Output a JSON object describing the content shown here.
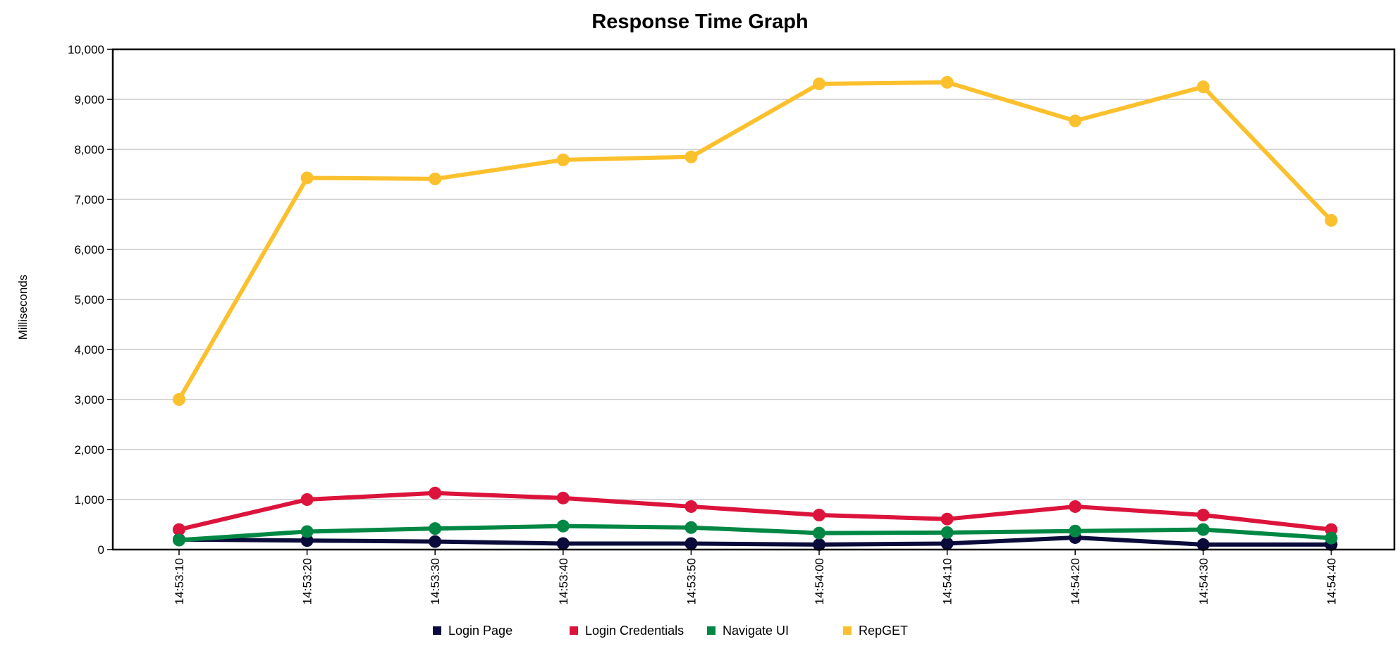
{
  "chart_data": {
    "type": "line",
    "title": "Response Time Graph",
    "xlabel": "",
    "ylabel": "Milliseconds",
    "ylim": [
      0,
      10000
    ],
    "y_ticks": [
      "0",
      "1,000",
      "2,000",
      "3,000",
      "4,000",
      "5,000",
      "6,000",
      "7,000",
      "8,000",
      "9,000",
      "10,000"
    ],
    "y_tick_values": [
      0,
      1000,
      2000,
      3000,
      4000,
      5000,
      6000,
      7000,
      8000,
      9000,
      10000
    ],
    "grid": true,
    "legend_position": "bottom",
    "categories": [
      "14:53:10",
      "14:53:20",
      "14:53:30",
      "14:53:40",
      "14:53:50",
      "14:54:00",
      "14:54:10",
      "14:54:20",
      "14:54:30",
      "14:54:40"
    ],
    "series": [
      {
        "name": "Login Page",
        "color": "#0b0b3b",
        "values": [
          200,
          180,
          160,
          120,
          120,
          100,
          120,
          240,
          100,
          100
        ]
      },
      {
        "name": "Login Credentials",
        "color": "#dc143c",
        "values": [
          400,
          1000,
          1130,
          1030,
          860,
          690,
          610,
          860,
          690,
          400
        ]
      },
      {
        "name": "Navigate UI",
        "color": "#008744",
        "values": [
          190,
          360,
          420,
          470,
          440,
          330,
          340,
          370,
          400,
          230
        ]
      },
      {
        "name": "RepGET",
        "color": "#fbc02d",
        "values": [
          3000,
          7430,
          7410,
          7790,
          7850,
          9310,
          9340,
          8570,
          9250,
          6580
        ]
      }
    ]
  }
}
